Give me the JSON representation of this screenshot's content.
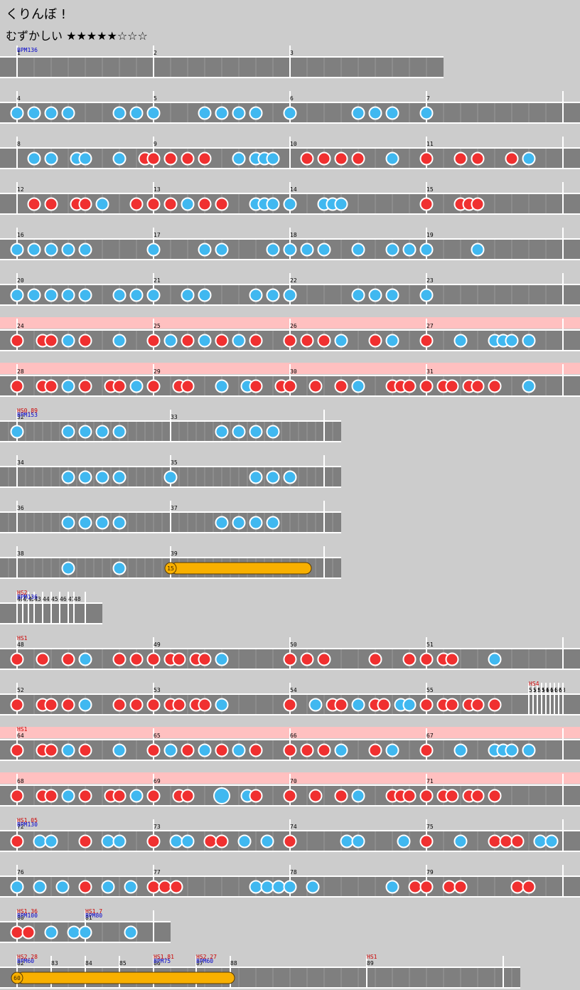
{
  "song": {
    "title": "くりんぼ !",
    "difficulty_label": "むずかしい",
    "difficulty_stars": "★★★★★☆☆☆",
    "difficulty_level": 5,
    "difficulty_max": 8
  },
  "colors": {
    "background": "#cccccc",
    "lane": "#7f7f7f",
    "gogo_band": "#ffc0c0",
    "don_note": "#f03030",
    "ka_note": "#40b8f0",
    "roll_note": "#f8b000",
    "bpm_label": "#0000cc",
    "hs_label": "#cc0000",
    "measure_number": "#000000"
  },
  "measure_numbers": [
    "1",
    "2",
    "3",
    "4",
    "5",
    "6",
    "7",
    "8",
    "9",
    "10",
    "11",
    "12",
    "13",
    "14",
    "15",
    "16",
    "17",
    "18",
    "19",
    "20",
    "21",
    "22",
    "23",
    "24",
    "25",
    "26",
    "27",
    "28",
    "29",
    "30",
    "31",
    "32",
    "33",
    "34",
    "35",
    "36",
    "37",
    "38",
    "39",
    "40",
    "41",
    "42",
    "43",
    "44",
    "45",
    "46",
    "47",
    "48",
    "49",
    "50",
    "51",
    "52",
    "53",
    "54",
    "55",
    "56",
    "57",
    "58",
    "59",
    "60",
    "61",
    "62",
    "63",
    "64",
    "65",
    "66",
    "67",
    "68",
    "69",
    "70",
    "71",
    "72",
    "73",
    "74",
    "75",
    "76",
    "77",
    "78",
    "79",
    "80",
    "81",
    "82",
    "83",
    "84",
    "85",
    "86",
    "87",
    "88",
    "89"
  ],
  "bpm_labels": [
    "BPM136",
    "BPM153",
    "BPM136",
    "BPM130",
    "BPM100",
    "BPM80",
    "BPM60",
    "BPM75",
    "BPM60"
  ],
  "hs_labels": [
    "HS0.89",
    "HS2",
    "HS1",
    "HS4",
    "HS1",
    "HS1.05",
    "HS1.36",
    "HS1.7",
    "HS2.28",
    "HS1.81",
    "HS2.27",
    "HS1"
  ],
  "roll_counts": [
    "15",
    "60"
  ]
}
